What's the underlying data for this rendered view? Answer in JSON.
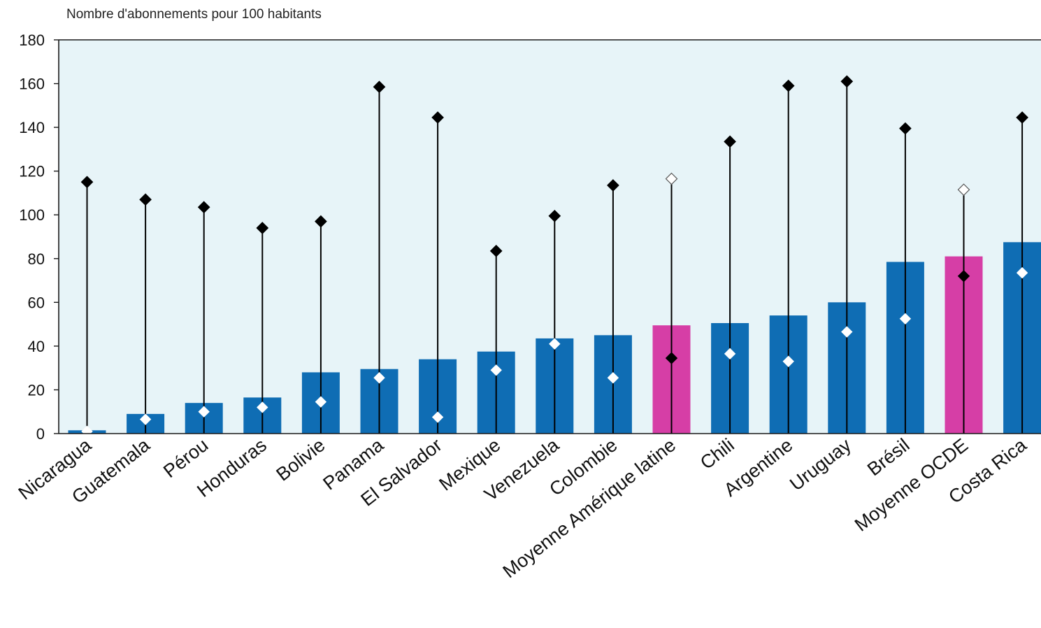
{
  "chart_data": {
    "type": "bar",
    "ylabel": "Nombre d'abonnements pour 100 habitants",
    "ylim": [
      0,
      180
    ],
    "yticks": [
      0,
      20,
      40,
      60,
      80,
      100,
      120,
      140,
      160,
      180
    ],
    "grid": false,
    "categories": [
      "Nicaragua",
      "Guatemala",
      "Pérou",
      "Honduras",
      "Bolivie",
      "Panama",
      "El Salvador",
      "Mexique",
      "Venezuela",
      "Colombie",
      "Moyenne Amérique latine",
      "Chili",
      "Argentine",
      "Uruguay",
      "Brésil",
      "Moyenne OCDE",
      "Costa Rica"
    ],
    "highlighted_categories": [
      "Moyenne Amérique latine",
      "Moyenne OCDE"
    ],
    "series": [
      {
        "type": "bar",
        "values": [
          1.5,
          9,
          14,
          16.5,
          28,
          29.5,
          34,
          37.5,
          43.5,
          45,
          49.5,
          50.5,
          54,
          60,
          78.5,
          81,
          87.5
        ]
      },
      {
        "type": "marker-diamond",
        "values": [
          1,
          6.5,
          10,
          12,
          14.5,
          25.5,
          7.5,
          29,
          41,
          25.5,
          34.5,
          36.5,
          33,
          46.5,
          52.5,
          72,
          73.5
        ]
      },
      {
        "type": "marker-diamond-with-line",
        "values": [
          115,
          107,
          103.5,
          94,
          97,
          158.5,
          144.5,
          83.5,
          99.5,
          113.5,
          116.5,
          133.5,
          159,
          161,
          139.5,
          111.5,
          144.5
        ]
      }
    ],
    "colors": {
      "bar": "#0f6db4",
      "bar_highlight": "#d63ea6",
      "plot_background": "#e7f4f8",
      "marker_dark": "#000000",
      "marker_light": "#ffffff",
      "axis": "#1a1a1a"
    }
  }
}
